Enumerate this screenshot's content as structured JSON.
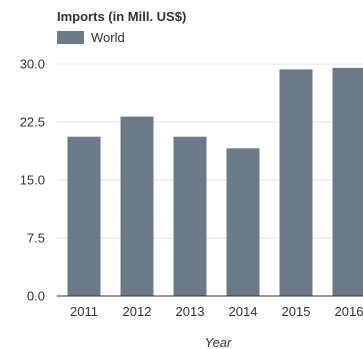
{
  "chart_data": {
    "type": "bar",
    "title": "Imports (in Mill. US$)",
    "xlabel": "Year",
    "ylabel": "",
    "categories": [
      "2011",
      "2012",
      "2013",
      "2014",
      "2015",
      "2016"
    ],
    "series": [
      {
        "name": "World",
        "values": [
          20.6,
          23.2,
          20.6,
          19.1,
          29.3,
          29.5
        ]
      }
    ],
    "ylim": [
      0,
      30
    ],
    "yticks": [
      "0.0",
      "7.5",
      "15.0",
      "22.5",
      "30.0"
    ],
    "grid": true,
    "legend": "top-left",
    "colors": {
      "bar": "#6b7a89",
      "grid": "#e3e3e3",
      "axis": "#333333",
      "text": "#333333"
    }
  }
}
